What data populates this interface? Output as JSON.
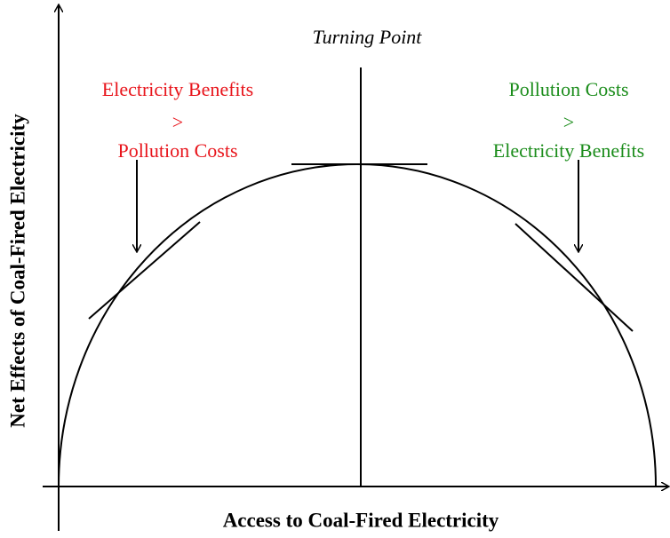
{
  "turning_point": "Turning Point",
  "left_note": [
    "Electricity Benefits",
    ">",
    "Pollution Costs"
  ],
  "right_note": [
    "Pollution Costs",
    ">",
    "Electricity Benefits"
  ],
  "x_axis_label": "Access to Coal-Fired Electricity",
  "y_axis_label": "Net Effects of Coal-Fired Electricity"
}
